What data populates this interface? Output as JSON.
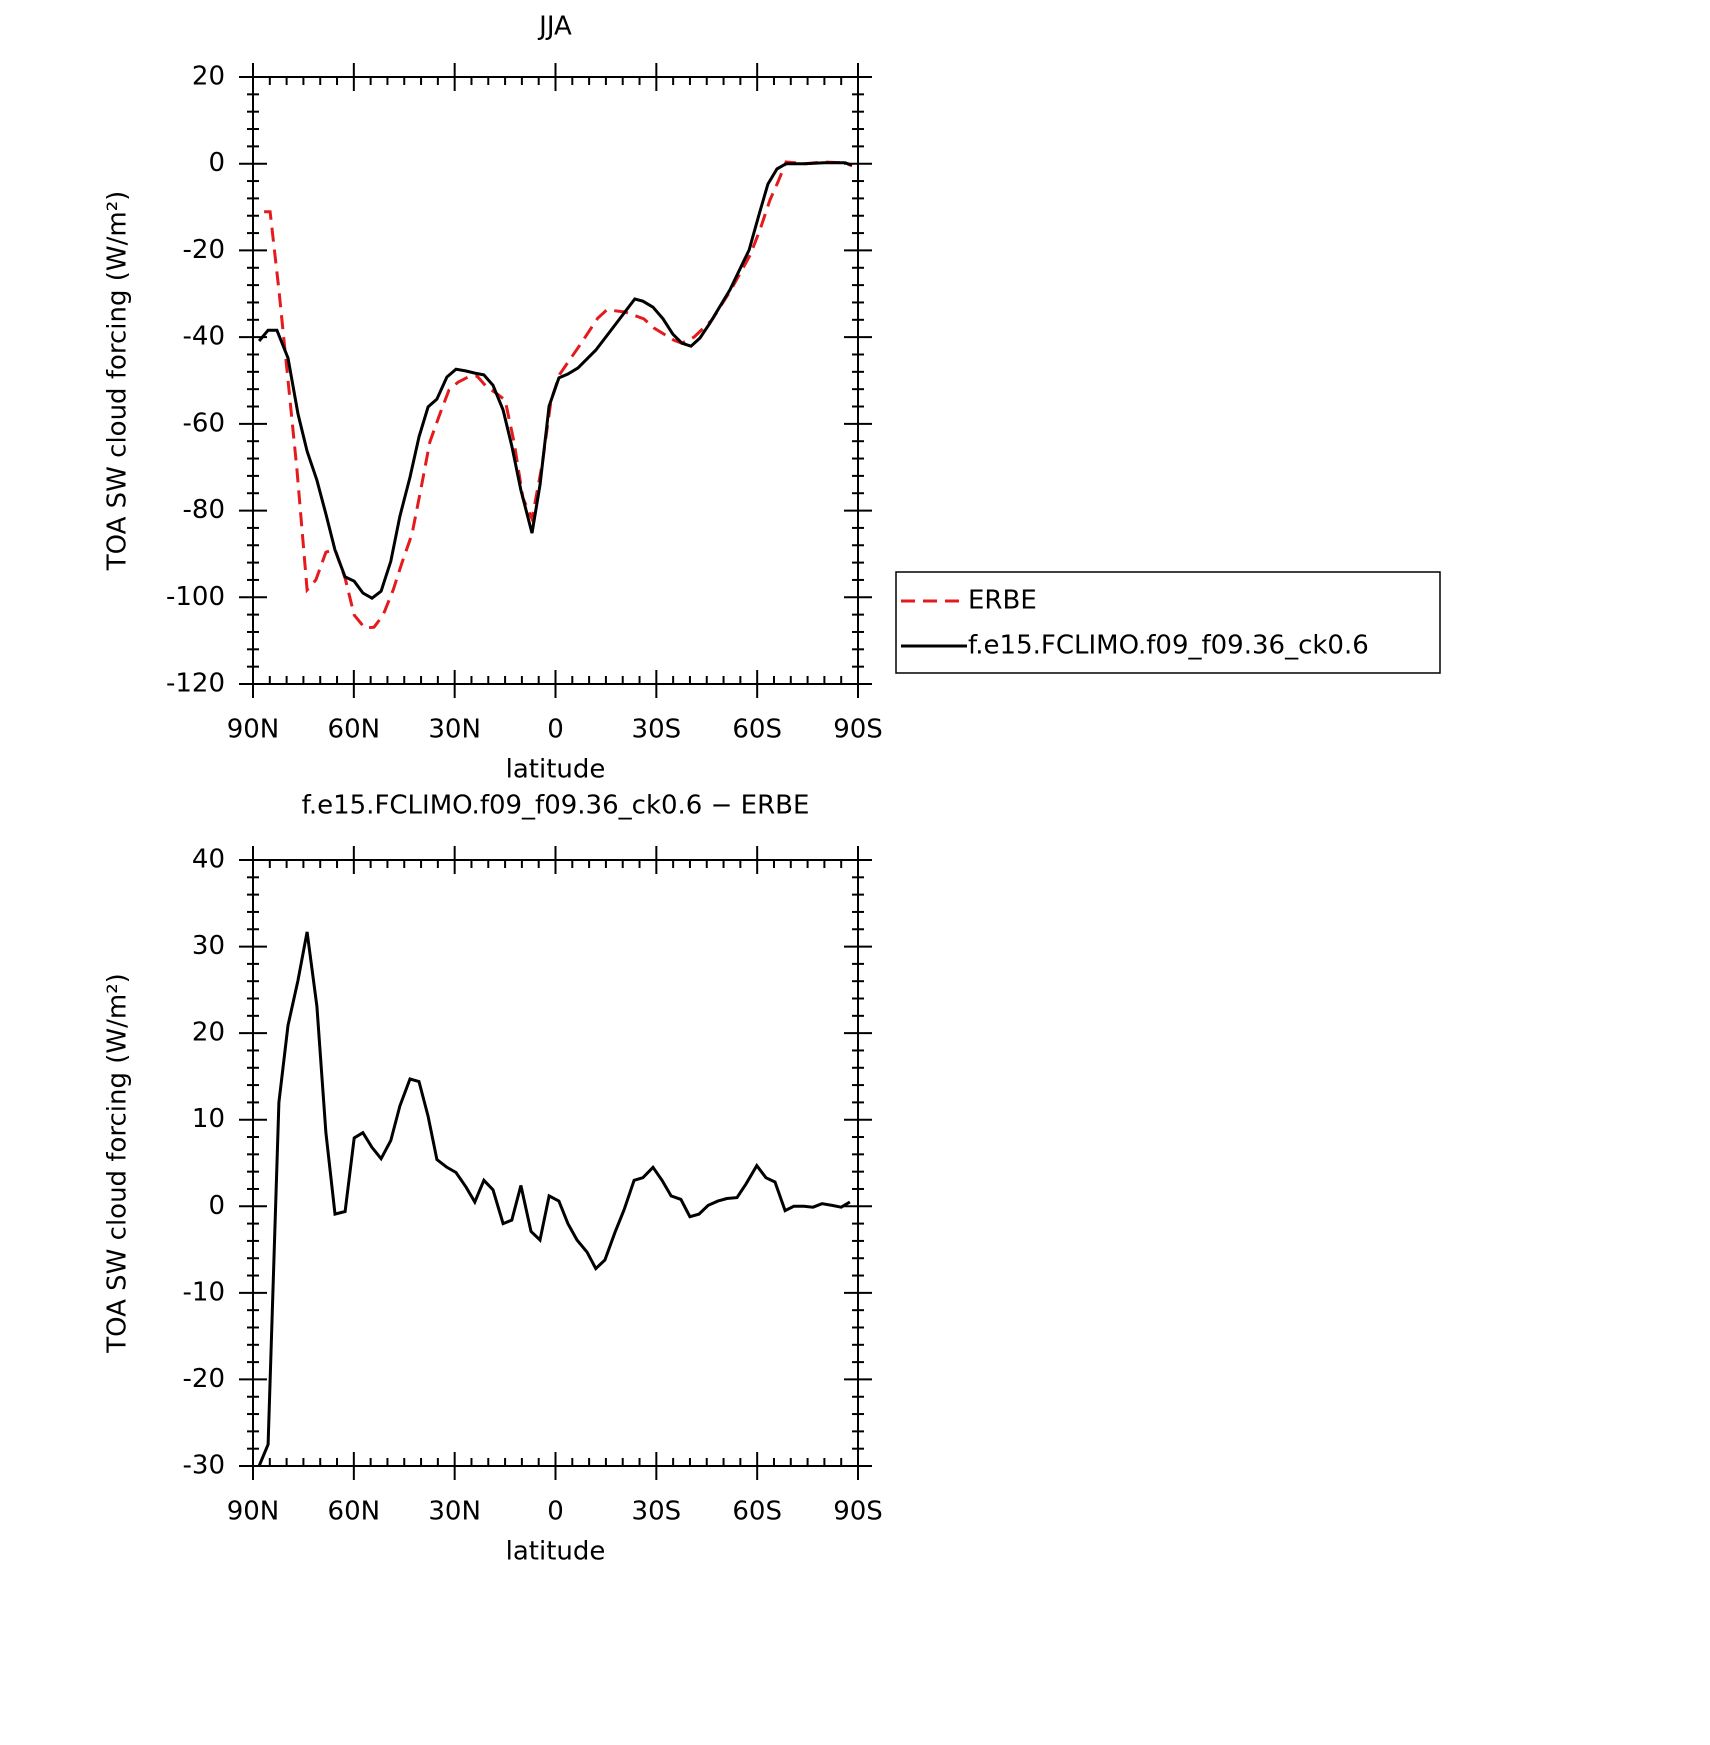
{
  "chart_data": [
    {
      "type": "line",
      "title": "JJA",
      "xlabel": "latitude",
      "ylabel": "TOA SW cloud forcing (W/m²)",
      "xlim": [
        90,
        -90
      ],
      "xticks": [
        {
          "value": 90,
          "label": "90N"
        },
        {
          "value": 60,
          "label": "60N"
        },
        {
          "value": 30,
          "label": "30N"
        },
        0,
        {
          "value": -30,
          "label": "30S"
        },
        {
          "value": -60,
          "label": "60S"
        },
        {
          "value": -90,
          "label": "90S"
        }
      ],
      "ylim": [
        -120,
        20
      ],
      "yticks": [
        -120,
        -100,
        -80,
        -60,
        -40,
        -20,
        0,
        20
      ],
      "legend": "right",
      "series": [
        {
          "name": "ERBE",
          "color": "#e41a1c",
          "dash": true,
          "x": [
            86.7,
            84.9,
            82.3,
            79.6,
            76.9,
            73.9,
            71.3,
            68.3,
            65.6,
            62.6,
            59.9,
            56.7,
            54.0,
            51.3,
            48.3,
            45.7,
            42.7,
            40.0,
            37.4,
            34.4,
            31.7,
            29.0,
            26.0,
            23.3,
            20.7,
            17.7,
            15.0,
            12.3,
            9.7,
            7.0,
            4.0,
            1.3,
            -1.3,
            -7.3,
            -12.6,
            -15.3,
            -20.7,
            -26.3,
            -29.3,
            -35.2,
            -37.6,
            -41.2,
            -46.5,
            -52.2,
            -57.9,
            -60.9,
            -63.8,
            -66.2,
            -68.6,
            -74.2,
            -79.9,
            -86.1,
            -88.2
          ],
          "values": [
            -11.1,
            -11.1,
            -29.1,
            -49.9,
            -70.7,
            -98.3,
            -96.0,
            -89.6,
            -88.9,
            -95.6,
            -104.1,
            -107.1,
            -106.9,
            -104.1,
            -98.3,
            -92.1,
            -85.4,
            -74.8,
            -64.2,
            -57.7,
            -52.2,
            -50.4,
            -49.2,
            -49.0,
            -51.3,
            -52.9,
            -54.5,
            -64.4,
            -77.1,
            -81.9,
            -69.5,
            -54.5,
            -48.5,
            -41.8,
            -35.6,
            -33.7,
            -34.2,
            -35.8,
            -37.9,
            -40.7,
            -41.4,
            -40.0,
            -36.1,
            -29.1,
            -21.1,
            -15.1,
            -8.4,
            -4.2,
            0.4,
            0,
            0.4,
            0.2,
            -0.5
          ]
        },
        {
          "name": "f.e15.FCLIMO.f09_f09.36_ck0.6",
          "color": "#000000",
          "dash": false,
          "x": [
            88.2,
            85.5,
            82.9,
            79.6,
            76.6,
            73.9,
            71.0,
            68.3,
            65.6,
            62.6,
            59.9,
            57.3,
            54.6,
            51.9,
            49.0,
            46.3,
            43.3,
            40.6,
            37.9,
            35.3,
            32.3,
            29.6,
            26.6,
            24.0,
            21.3,
            18.6,
            15.6,
            13.0,
            10.3,
            7.0,
            4.6,
            1.9,
            -1.0,
            -3.7,
            -6.7,
            -12.0,
            -17.7,
            -23.6,
            -26.0,
            -29.0,
            -32.0,
            -34.9,
            -37.6,
            -40.3,
            -43.0,
            -46.0,
            -51.9,
            -57.6,
            -60.6,
            -63.2,
            -65.9,
            -68.6,
            -74.2,
            -79.9,
            -86.1,
            -88.2
          ],
          "values": [
            -40.9,
            -38.4,
            -38.4,
            -44.8,
            -57.7,
            -66.3,
            -73.0,
            -80.8,
            -89.1,
            -95.3,
            -96.3,
            -99.0,
            -100.2,
            -98.6,
            -91.7,
            -81.3,
            -72.3,
            -63.0,
            -56.1,
            -54.3,
            -49.2,
            -47.4,
            -47.8,
            -48.3,
            -48.7,
            -51.1,
            -56.8,
            -65.1,
            -75.3,
            -85.2,
            -74.1,
            -55.9,
            -49.4,
            -48.5,
            -47.1,
            -43.0,
            -37.2,
            -31.2,
            -31.7,
            -33.1,
            -35.8,
            -39.3,
            -41.4,
            -42.1,
            -40.2,
            -36.7,
            -29.1,
            -19.9,
            -11.6,
            -4.7,
            -1.2,
            0.0,
            0,
            0.2,
            0.2,
            -0.3
          ]
        }
      ]
    },
    {
      "type": "line",
      "title": "f.e15.FCLIMO.f09_f09.36_ck0.6 − ERBE",
      "xlabel": "latitude",
      "ylabel": "TOA SW cloud forcing (W/m²)",
      "xlim": [
        90,
        -90
      ],
      "xticks": [
        {
          "value": 90,
          "label": "90N"
        },
        {
          "value": 60,
          "label": "60N"
        },
        {
          "value": 30,
          "label": "30N"
        },
        0,
        {
          "value": -30,
          "label": "30S"
        },
        {
          "value": -60,
          "label": "60S"
        },
        {
          "value": -90,
          "label": "90S"
        }
      ],
      "ylim": [
        -30,
        40
      ],
      "yticks": [
        -30,
        -20,
        -10,
        0,
        10,
        20,
        30,
        40
      ],
      "series": [
        {
          "color": "#000000",
          "dash": false,
          "x": [
            88.2,
            85.5,
            82.3,
            79.6,
            76.6,
            73.9,
            71.0,
            68.3,
            65.6,
            62.6,
            59.9,
            57.3,
            54.6,
            51.9,
            49.0,
            46.3,
            43.3,
            40.6,
            37.9,
            35.3,
            32.3,
            29.6,
            26.6,
            24.0,
            21.3,
            18.6,
            15.6,
            13.0,
            10.3,
            7.3,
            4.6,
            1.9,
            -1.0,
            -3.7,
            -6.4,
            -9.4,
            -12.0,
            -14.7,
            -17.7,
            -20.4,
            -23.4,
            -26.0,
            -29.0,
            -31.7,
            -34.4,
            -37.3,
            -40.0,
            -42.7,
            -45.4,
            -48.3,
            -51.0,
            -54.0,
            -56.7,
            -59.9,
            -62.6,
            -65.3,
            -68.3,
            -70.9,
            -73.9,
            -76.6,
            -79.3,
            -82.3,
            -85.0,
            -87.6
          ],
          "values": [
            -30.0,
            -27.5,
            12.0,
            20.9,
            26.1,
            31.7,
            23.1,
            8.5,
            -0.9,
            -0.6,
            7.9,
            8.5,
            6.8,
            5.5,
            7.6,
            11.6,
            14.7,
            14.4,
            10.4,
            5.4,
            4.5,
            3.9,
            2.2,
            0.5,
            3.0,
            1.9,
            -2.0,
            -1.6,
            2.4,
            -2.9,
            -3.9,
            1.2,
            0.6,
            -2.0,
            -3.9,
            -5.3,
            -7.2,
            -6.2,
            -3.0,
            -0.4,
            3.0,
            3.3,
            4.5,
            3.0,
            1.2,
            0.8,
            -1.2,
            -0.9,
            0.1,
            0.6,
            0.9,
            1.0,
            2.6,
            4.7,
            3.3,
            2.8,
            -0.5,
            0.0,
            0.0,
            -0.1,
            0.3,
            0.1,
            -0.1,
            0.5
          ]
        }
      ]
    }
  ]
}
